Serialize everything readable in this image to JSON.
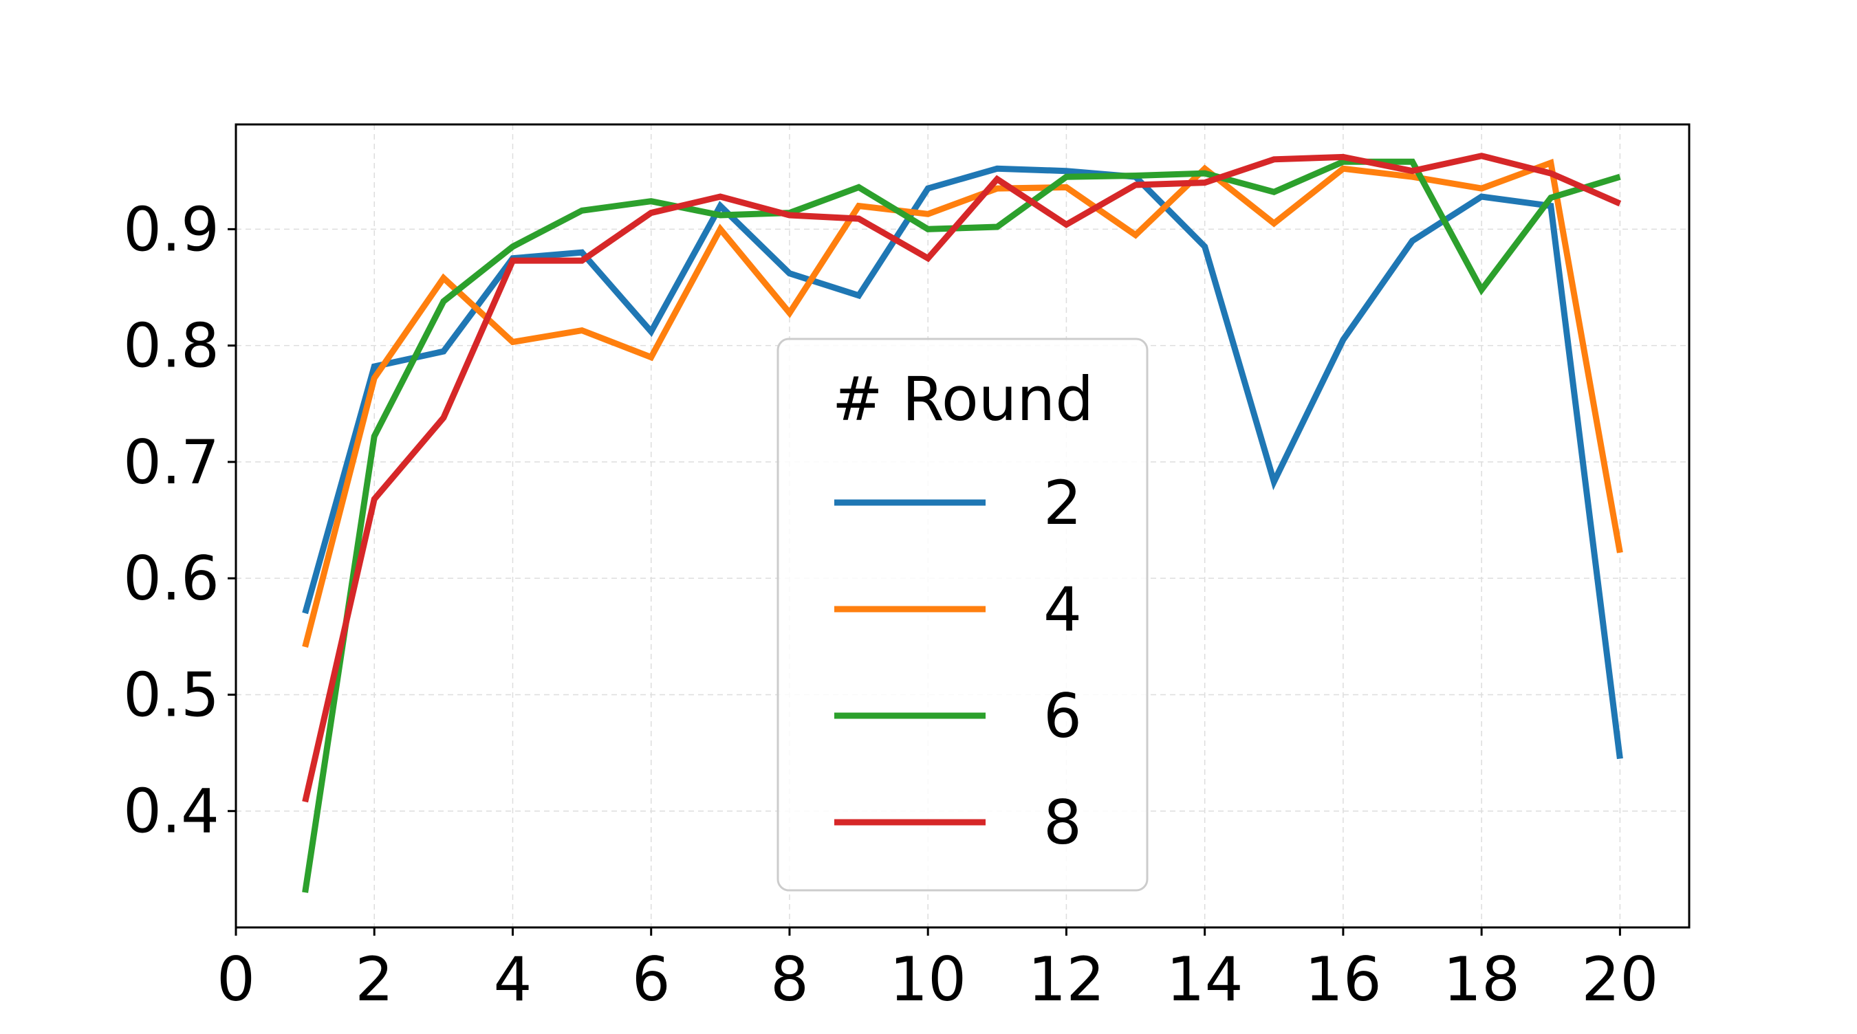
{
  "chart_data": {
    "type": "line",
    "title": "",
    "xlabel": "",
    "ylabel": "",
    "xlim": [
      0,
      21
    ],
    "ylim": [
      0.3,
      0.99
    ],
    "x_ticks": [
      0,
      2,
      4,
      6,
      8,
      10,
      12,
      14,
      16,
      18,
      20
    ],
    "x_tick_labels": [
      "0",
      "2",
      "4",
      "6",
      "8",
      "10",
      "12",
      "14",
      "16",
      "18",
      "20"
    ],
    "y_ticks": [
      0.4,
      0.5,
      0.6,
      0.7,
      0.8,
      0.9
    ],
    "y_tick_labels": [
      "0.4",
      "0.5",
      "0.6",
      "0.7",
      "0.8",
      "0.9"
    ],
    "grid": true,
    "legend": {
      "title": "# Round",
      "placement": "lower-center"
    },
    "x": [
      1,
      2,
      3,
      4,
      5,
      6,
      7,
      8,
      9,
      10,
      11,
      12,
      13,
      14,
      15,
      16,
      17,
      18,
      19,
      20
    ],
    "series": [
      {
        "name": "2",
        "color": "#1f77b4",
        "values": [
          0.57,
          0.782,
          0.795,
          0.875,
          0.88,
          0.812,
          0.92,
          0.862,
          0.843,
          0.935,
          0.952,
          0.95,
          0.945,
          0.885,
          0.683,
          0.805,
          0.89,
          0.928,
          0.92,
          0.445
        ]
      },
      {
        "name": "4",
        "color": "#ff7f0e",
        "values": [
          0.541,
          0.772,
          0.858,
          0.803,
          0.813,
          0.79,
          0.9,
          0.828,
          0.92,
          0.913,
          0.935,
          0.936,
          0.895,
          0.952,
          0.905,
          0.952,
          0.945,
          0.935,
          0.957,
          0.622
        ]
      },
      {
        "name": "6",
        "color": "#2ca02c",
        "values": [
          0.33,
          0.722,
          0.838,
          0.885,
          0.916,
          0.924,
          0.912,
          0.914,
          0.936,
          0.9,
          0.902,
          0.945,
          0.946,
          0.948,
          0.932,
          0.958,
          0.958,
          0.848,
          0.927,
          0.945
        ]
      },
      {
        "name": "8",
        "color": "#d62728",
        "values": [
          0.408,
          0.668,
          0.738,
          0.873,
          0.873,
          0.914,
          0.928,
          0.912,
          0.909,
          0.875,
          0.943,
          0.904,
          0.938,
          0.94,
          0.96,
          0.962,
          0.95,
          0.963,
          0.948,
          0.922
        ]
      }
    ]
  }
}
